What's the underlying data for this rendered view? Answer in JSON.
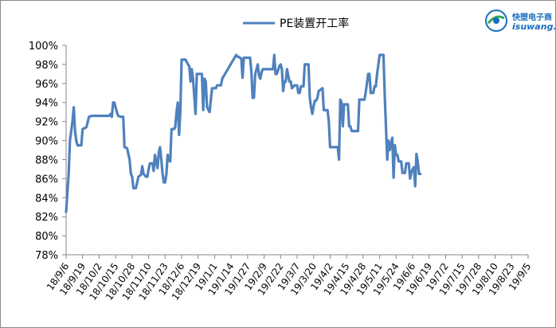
{
  "chart_data": {
    "type": "line",
    "title": "",
    "xlabel": "",
    "ylabel": "",
    "ylim": [
      0.78,
      1.0
    ],
    "y_tick_labels": [
      "78%",
      "80%",
      "82%",
      "84%",
      "86%",
      "88%",
      "90%",
      "92%",
      "94%",
      "96%",
      "98%",
      "100%"
    ],
    "x_tick_labels": [
      "18/9/6",
      "18/9/19",
      "18/10/2",
      "18/10/15",
      "18/10/28",
      "18/11/10",
      "18/11/23",
      "18/12/6",
      "18/12/19",
      "19/1/1",
      "19/1/14",
      "19/1/27",
      "19/2/9",
      "19/2/22",
      "19/3/7",
      "19/3/20",
      "19/4/2",
      "19/4/15",
      "19/4/28",
      "19/5/11",
      "19/5/24",
      "19/6/6",
      "19/6/19",
      "19/7/2",
      "19/7/15",
      "19/7/28",
      "19/8/10",
      "19/8/23",
      "19/9/5"
    ],
    "legend_position": "top-center",
    "grid": false,
    "series": [
      {
        "name": "PE装置开工率",
        "color": "#4f81bd",
        "points": [
          [
            "2018-09-06",
            0.825
          ],
          [
            "2018-09-07",
            0.845
          ],
          [
            "2018-09-08",
            0.865
          ],
          [
            "2018-09-09",
            0.9
          ],
          [
            "2018-09-11",
            0.92
          ],
          [
            "2018-09-12",
            0.935
          ],
          [
            "2018-09-13",
            0.91
          ],
          [
            "2018-09-14",
            0.9
          ],
          [
            "2018-09-15",
            0.895
          ],
          [
            "2018-09-18",
            0.895
          ],
          [
            "2018-09-19",
            0.912
          ],
          [
            "2018-09-22",
            0.914
          ],
          [
            "2018-09-24",
            0.925
          ],
          [
            "2018-09-26",
            0.926
          ],
          [
            "2018-10-10",
            0.926
          ],
          [
            "2018-10-11",
            0.928
          ],
          [
            "2018-10-12",
            0.925
          ],
          [
            "2018-10-13",
            0.94
          ],
          [
            "2018-10-14",
            0.94
          ],
          [
            "2018-10-16",
            0.93
          ],
          [
            "2018-10-17",
            0.926
          ],
          [
            "2018-10-19",
            0.925
          ],
          [
            "2018-10-21",
            0.925
          ],
          [
            "2018-10-22",
            0.893
          ],
          [
            "2018-10-24",
            0.892
          ],
          [
            "2018-10-26",
            0.88
          ],
          [
            "2018-10-27",
            0.865
          ],
          [
            "2018-10-28",
            0.862
          ],
          [
            "2018-10-29",
            0.85
          ],
          [
            "2018-10-31",
            0.85
          ],
          [
            "2018-11-02",
            0.862
          ],
          [
            "2018-11-04",
            0.864
          ],
          [
            "2018-11-05",
            0.873
          ],
          [
            "2018-11-06",
            0.865
          ],
          [
            "2018-11-08",
            0.862
          ],
          [
            "2018-11-09",
            0.862
          ],
          [
            "2018-11-10",
            0.87
          ],
          [
            "2018-11-11",
            0.876
          ],
          [
            "2018-11-13",
            0.876
          ],
          [
            "2018-11-14",
            0.868
          ],
          [
            "2018-11-15",
            0.885
          ],
          [
            "2018-11-16",
            0.878
          ],
          [
            "2018-11-17",
            0.871
          ],
          [
            "2018-11-18",
            0.887
          ],
          [
            "2018-11-19",
            0.893
          ],
          [
            "2018-11-20",
            0.88
          ],
          [
            "2018-11-21",
            0.865
          ],
          [
            "2018-11-22",
            0.856
          ],
          [
            "2018-11-23",
            0.856
          ],
          [
            "2018-11-24",
            0.865
          ],
          [
            "2018-11-25",
            0.885
          ],
          [
            "2018-11-26",
            0.88
          ],
          [
            "2018-11-27",
            0.878
          ],
          [
            "2018-11-28",
            0.912
          ],
          [
            "2018-11-30",
            0.912
          ],
          [
            "2018-12-01",
            0.914
          ],
          [
            "2018-12-02",
            0.93
          ],
          [
            "2018-12-03",
            0.94
          ],
          [
            "2018-12-04",
            0.906
          ],
          [
            "2018-12-05",
            0.93
          ],
          [
            "2018-12-06",
            0.985
          ],
          [
            "2018-12-09",
            0.985
          ],
          [
            "2018-12-11",
            0.98
          ],
          [
            "2018-12-12",
            0.978
          ],
          [
            "2018-12-13",
            0.962
          ],
          [
            "2018-12-14",
            0.975
          ],
          [
            "2018-12-15",
            0.965
          ],
          [
            "2018-12-17",
            0.928
          ],
          [
            "2018-12-18",
            0.97
          ],
          [
            "2018-12-20",
            0.97
          ],
          [
            "2018-12-22",
            0.97
          ],
          [
            "2018-12-23",
            0.932
          ],
          [
            "2018-12-24",
            0.965
          ],
          [
            "2018-12-25",
            0.962
          ],
          [
            "2018-12-26",
            0.935
          ],
          [
            "2018-12-28",
            0.93
          ],
          [
            "2018-12-29",
            0.942
          ],
          [
            "2018-12-30",
            0.955
          ],
          [
            "2019-01-02",
            0.955
          ],
          [
            "2019-01-03",
            0.958
          ],
          [
            "2019-01-06",
            0.958
          ],
          [
            "2019-01-07",
            0.965
          ],
          [
            "2019-01-18",
            0.99
          ],
          [
            "2019-01-19",
            0.988
          ],
          [
            "2019-01-20",
            0.988
          ],
          [
            "2019-01-22",
            0.986
          ],
          [
            "2019-01-23",
            0.966
          ],
          [
            "2019-01-24",
            0.987
          ],
          [
            "2019-01-28",
            0.987
          ],
          [
            "2019-01-29",
            0.987
          ],
          [
            "2019-01-30",
            0.972
          ],
          [
            "2019-01-31",
            0.945
          ],
          [
            "2019-02-01",
            0.945
          ],
          [
            "2019-02-02",
            0.97
          ],
          [
            "2019-02-04",
            0.98
          ],
          [
            "2019-02-05",
            0.968
          ],
          [
            "2019-02-06",
            0.965
          ],
          [
            "2019-02-07",
            0.972
          ],
          [
            "2019-02-08",
            0.975
          ],
          [
            "2019-02-12",
            0.975
          ],
          [
            "2019-02-16",
            0.975
          ],
          [
            "2019-02-17",
            0.99
          ],
          [
            "2019-02-18",
            0.97
          ],
          [
            "2019-02-19",
            0.97
          ],
          [
            "2019-02-21",
            0.978
          ],
          [
            "2019-02-22",
            0.98
          ],
          [
            "2019-02-23",
            0.975
          ],
          [
            "2019-02-24",
            0.952
          ],
          [
            "2019-02-25",
            0.962
          ],
          [
            "2019-02-26",
            0.962
          ],
          [
            "2019-02-27",
            0.975
          ],
          [
            "2019-03-01",
            0.962
          ],
          [
            "2019-03-02",
            0.962
          ],
          [
            "2019-03-03",
            0.955
          ],
          [
            "2019-03-05",
            0.958
          ],
          [
            "2019-03-07",
            0.958
          ],
          [
            "2019-03-08",
            0.95
          ],
          [
            "2019-03-09",
            0.95
          ],
          [
            "2019-03-10",
            0.957
          ],
          [
            "2019-03-12",
            0.957
          ],
          [
            "2019-03-13",
            0.98
          ],
          [
            "2019-03-16",
            0.98
          ],
          [
            "2019-03-17",
            0.945
          ],
          [
            "2019-03-18",
            0.935
          ],
          [
            "2019-03-19",
            0.928
          ],
          [
            "2019-03-20",
            0.936
          ],
          [
            "2019-03-21",
            0.942
          ],
          [
            "2019-03-22",
            0.942
          ],
          [
            "2019-03-23",
            0.945
          ],
          [
            "2019-03-24",
            0.952
          ],
          [
            "2019-03-27",
            0.955
          ],
          [
            "2019-03-28",
            0.932
          ],
          [
            "2019-03-31",
            0.932
          ],
          [
            "2019-04-01",
            0.92
          ],
          [
            "2019-04-02",
            0.893
          ],
          [
            "2019-04-05",
            0.893
          ],
          [
            "2019-04-08",
            0.893
          ],
          [
            "2019-04-09",
            0.88
          ],
          [
            "2019-04-10",
            0.943
          ],
          [
            "2019-04-11",
            0.94
          ],
          [
            "2019-04-12",
            0.915
          ],
          [
            "2019-04-13",
            0.938
          ],
          [
            "2019-04-16",
            0.938
          ],
          [
            "2019-04-17",
            0.915
          ],
          [
            "2019-04-18",
            0.915
          ],
          [
            "2019-04-19",
            0.91
          ],
          [
            "2019-04-24",
            0.91
          ],
          [
            "2019-04-25",
            0.943
          ],
          [
            "2019-04-29",
            0.943
          ],
          [
            "2019-04-30",
            0.95
          ],
          [
            "2019-05-02",
            0.97
          ],
          [
            "2019-05-03",
            0.97
          ],
          [
            "2019-05-04",
            0.95
          ],
          [
            "2019-05-06",
            0.95
          ],
          [
            "2019-05-07",
            0.957
          ],
          [
            "2019-05-08",
            0.957
          ],
          [
            "2019-05-09",
            0.97
          ],
          [
            "2019-05-11",
            0.99
          ],
          [
            "2019-05-14",
            0.99
          ],
          [
            "2019-05-15",
            0.95
          ],
          [
            "2019-05-17",
            0.88
          ],
          [
            "2019-05-18",
            0.9
          ],
          [
            "2019-05-19",
            0.89
          ],
          [
            "2019-05-21",
            0.903
          ],
          [
            "2019-05-22",
            0.861
          ],
          [
            "2019-05-23",
            0.895
          ],
          [
            "2019-05-24",
            0.885
          ],
          [
            "2019-05-25",
            0.885
          ],
          [
            "2019-05-26",
            0.878
          ],
          [
            "2019-05-28",
            0.878
          ],
          [
            "2019-05-29",
            0.866
          ],
          [
            "2019-05-31",
            0.866
          ],
          [
            "2019-06-01",
            0.876
          ],
          [
            "2019-06-03",
            0.876
          ],
          [
            "2019-06-04",
            0.86
          ],
          [
            "2019-06-05",
            0.866
          ],
          [
            "2019-06-06",
            0.87
          ],
          [
            "2019-06-07",
            0.872
          ],
          [
            "2019-06-08",
            0.852
          ],
          [
            "2019-06-09",
            0.886
          ],
          [
            "2019-06-10",
            0.878
          ],
          [
            "2019-06-11",
            0.865
          ],
          [
            "2019-06-12",
            0.865
          ]
        ]
      }
    ]
  },
  "legend": {
    "label": "PE装置开工率"
  },
  "logo": {
    "cn": "快塑电子商",
    "en": "isuwang.c",
    "color": "#1a6ec0"
  }
}
